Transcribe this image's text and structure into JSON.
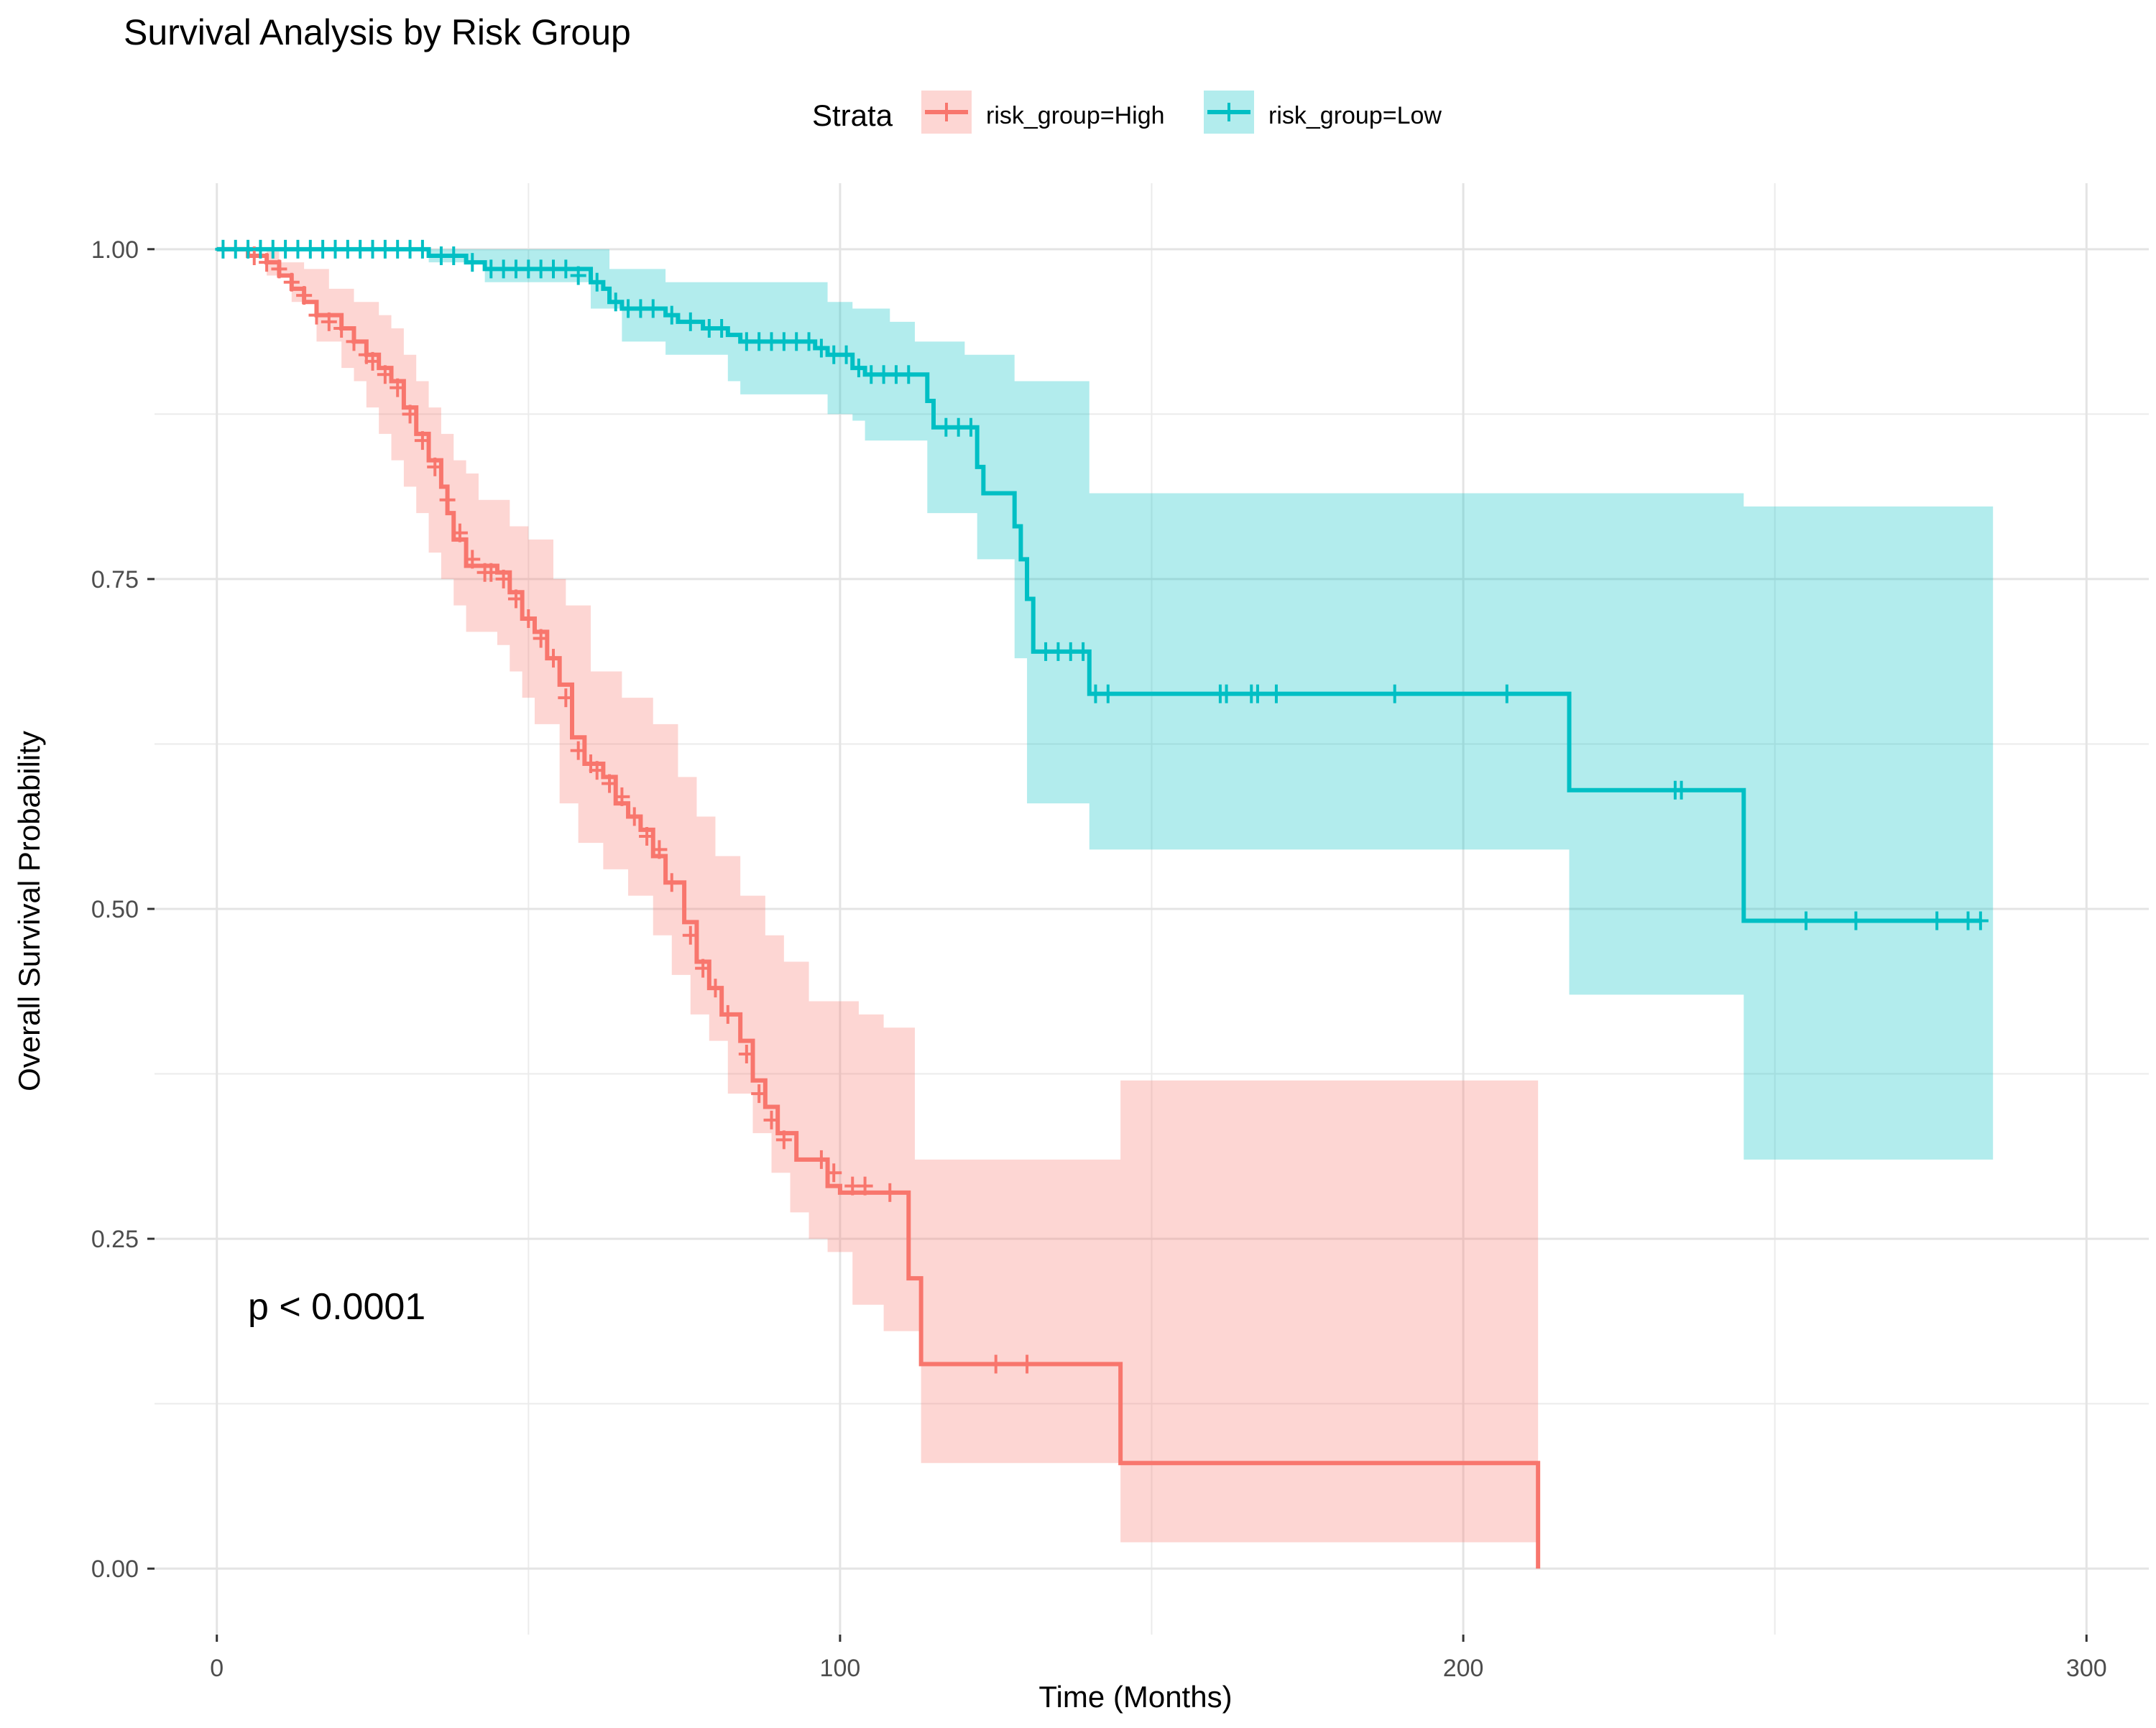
{
  "chart_data": {
    "type": "line",
    "title": "Survival Analysis by Risk Group",
    "xlabel": "Time (Months)",
    "ylabel": "Overall Survival Probability",
    "xlim": [
      -10,
      310
    ],
    "ylim": [
      -0.05,
      1.05
    ],
    "x_ticks": [
      0,
      100,
      200,
      300
    ],
    "y_ticks": [
      0.0,
      0.25,
      0.5,
      0.75,
      1.0
    ],
    "x_tick_labels": [
      "0",
      "100",
      "200",
      "300"
    ],
    "y_tick_labels": [
      "0.00",
      "0.25",
      "0.50",
      "0.75",
      "1.00"
    ],
    "grid": true,
    "legend_title": "Strata",
    "legend_position": "top",
    "annotation": "p < 0.0001",
    "series": [
      {
        "name": "risk_group=High",
        "color": "#F8766D",
        "fill": "#F8766D",
        "steps": [
          [
            0,
            1.0
          ],
          [
            5,
            0.995
          ],
          [
            8,
            0.99
          ],
          [
            10,
            0.98
          ],
          [
            12,
            0.97
          ],
          [
            14,
            0.96
          ],
          [
            16,
            0.95
          ],
          [
            20,
            0.94
          ],
          [
            22,
            0.93
          ],
          [
            24,
            0.92
          ],
          [
            26,
            0.91
          ],
          [
            28,
            0.9
          ],
          [
            30,
            0.88
          ],
          [
            32,
            0.86
          ],
          [
            34,
            0.84
          ],
          [
            36,
            0.82
          ],
          [
            37,
            0.8
          ],
          [
            38,
            0.78
          ],
          [
            40,
            0.76
          ],
          [
            45,
            0.755
          ],
          [
            47,
            0.74
          ],
          [
            49,
            0.72
          ],
          [
            51,
            0.71
          ],
          [
            53,
            0.69
          ],
          [
            55,
            0.67
          ],
          [
            57,
            0.63
          ],
          [
            59,
            0.61
          ],
          [
            62,
            0.6
          ],
          [
            64,
            0.58
          ],
          [
            66,
            0.57
          ],
          [
            68,
            0.56
          ],
          [
            70,
            0.54
          ],
          [
            72,
            0.52
          ],
          [
            75,
            0.49
          ],
          [
            77,
            0.46
          ],
          [
            79,
            0.44
          ],
          [
            81,
            0.42
          ],
          [
            84,
            0.4
          ],
          [
            86,
            0.37
          ],
          [
            88,
            0.35
          ],
          [
            90,
            0.33
          ],
          [
            93,
            0.31
          ],
          [
            98,
            0.29
          ],
          [
            100,
            0.285
          ],
          [
            111,
            0.22
          ],
          [
            113,
            0.155
          ],
          [
            145,
            0.08
          ],
          [
            212,
            0.0
          ]
        ],
        "upper": [
          [
            0,
            1.0
          ],
          [
            5,
            1.0
          ],
          [
            10,
            0.99
          ],
          [
            14,
            0.985
          ],
          [
            18,
            0.97
          ],
          [
            22,
            0.96
          ],
          [
            26,
            0.95
          ],
          [
            28,
            0.94
          ],
          [
            30,
            0.92
          ],
          [
            32,
            0.9
          ],
          [
            34,
            0.88
          ],
          [
            36,
            0.86
          ],
          [
            38,
            0.84
          ],
          [
            40,
            0.83
          ],
          [
            42,
            0.81
          ],
          [
            47,
            0.79
          ],
          [
            50,
            0.78
          ],
          [
            54,
            0.75
          ],
          [
            56,
            0.73
          ],
          [
            60,
            0.68
          ],
          [
            65,
            0.66
          ],
          [
            70,
            0.64
          ],
          [
            74,
            0.6
          ],
          [
            77,
            0.57
          ],
          [
            80,
            0.54
          ],
          [
            84,
            0.51
          ],
          [
            88,
            0.48
          ],
          [
            91,
            0.46
          ],
          [
            95,
            0.43
          ],
          [
            103,
            0.42
          ],
          [
            107,
            0.41
          ],
          [
            112,
            0.31
          ],
          [
            145,
            0.37
          ],
          [
            212,
            0.37
          ]
        ],
        "lower": [
          [
            0,
            1.0
          ],
          [
            8,
            0.98
          ],
          [
            12,
            0.96
          ],
          [
            16,
            0.93
          ],
          [
            20,
            0.91
          ],
          [
            22,
            0.9
          ],
          [
            24,
            0.88
          ],
          [
            26,
            0.86
          ],
          [
            28,
            0.84
          ],
          [
            30,
            0.82
          ],
          [
            32,
            0.8
          ],
          [
            34,
            0.77
          ],
          [
            36,
            0.75
          ],
          [
            38,
            0.73
          ],
          [
            40,
            0.71
          ],
          [
            45,
            0.7
          ],
          [
            47,
            0.68
          ],
          [
            49,
            0.66
          ],
          [
            51,
            0.64
          ],
          [
            55,
            0.58
          ],
          [
            58,
            0.55
          ],
          [
            62,
            0.53
          ],
          [
            66,
            0.51
          ],
          [
            70,
            0.48
          ],
          [
            73,
            0.45
          ],
          [
            76,
            0.42
          ],
          [
            79,
            0.4
          ],
          [
            82,
            0.36
          ],
          [
            86,
            0.33
          ],
          [
            89,
            0.3
          ],
          [
            92,
            0.27
          ],
          [
            95,
            0.25
          ],
          [
            98,
            0.24
          ],
          [
            102,
            0.2
          ],
          [
            107,
            0.18
          ],
          [
            113,
            0.08
          ],
          [
            145,
            0.02
          ],
          [
            212,
            0.02
          ]
        ],
        "censors": [
          [
            6,
            0.995
          ],
          [
            8,
            0.99
          ],
          [
            10,
            0.985
          ],
          [
            12,
            0.975
          ],
          [
            14,
            0.965
          ],
          [
            16,
            0.95
          ],
          [
            18,
            0.945
          ],
          [
            20,
            0.94
          ],
          [
            22,
            0.93
          ],
          [
            24,
            0.92
          ],
          [
            25,
            0.915
          ],
          [
            27,
            0.905
          ],
          [
            29,
            0.895
          ],
          [
            31,
            0.875
          ],
          [
            33,
            0.855
          ],
          [
            35,
            0.835
          ],
          [
            37,
            0.81
          ],
          [
            39,
            0.785
          ],
          [
            41,
            0.765
          ],
          [
            43,
            0.755
          ],
          [
            44,
            0.755
          ],
          [
            46,
            0.75
          ],
          [
            48,
            0.735
          ],
          [
            50,
            0.72
          ],
          [
            52,
            0.705
          ],
          [
            54,
            0.69
          ],
          [
            56,
            0.66
          ],
          [
            58,
            0.62
          ],
          [
            60,
            0.61
          ],
          [
            61,
            0.605
          ],
          [
            63,
            0.595
          ],
          [
            65,
            0.585
          ],
          [
            67,
            0.57
          ],
          [
            69,
            0.555
          ],
          [
            71,
            0.545
          ],
          [
            73,
            0.52
          ],
          [
            76,
            0.48
          ],
          [
            78,
            0.455
          ],
          [
            80,
            0.44
          ],
          [
            82,
            0.42
          ],
          [
            85,
            0.39
          ],
          [
            87,
            0.36
          ],
          [
            89,
            0.34
          ],
          [
            91,
            0.325
          ],
          [
            97,
            0.31
          ],
          [
            99,
            0.3
          ],
          [
            102,
            0.29
          ],
          [
            104,
            0.29
          ],
          [
            108,
            0.285
          ],
          [
            125,
            0.155
          ],
          [
            130,
            0.155
          ]
        ]
      },
      {
        "name": "risk_group=Low",
        "color": "#00BFC4",
        "fill": "#00BFC4",
        "steps": [
          [
            0,
            1.0
          ],
          [
            34,
            0.995
          ],
          [
            40,
            0.99
          ],
          [
            43,
            0.985
          ],
          [
            60,
            0.975
          ],
          [
            62,
            0.97
          ],
          [
            63,
            0.96
          ],
          [
            65,
            0.955
          ],
          [
            72,
            0.95
          ],
          [
            74,
            0.945
          ],
          [
            78,
            0.94
          ],
          [
            82,
            0.935
          ],
          [
            84,
            0.93
          ],
          [
            96,
            0.925
          ],
          [
            98,
            0.92
          ],
          [
            102,
            0.91
          ],
          [
            104,
            0.905
          ],
          [
            114,
            0.885
          ],
          [
            115,
            0.865
          ],
          [
            122,
            0.835
          ],
          [
            123,
            0.815
          ],
          [
            128,
            0.79
          ],
          [
            129,
            0.765
          ],
          [
            130,
            0.735
          ],
          [
            131,
            0.695
          ],
          [
            140,
            0.663
          ],
          [
            217,
            0.59
          ],
          [
            245,
            0.491
          ],
          [
            283,
            0.491
          ]
        ],
        "upper": [
          [
            0,
            1.0
          ],
          [
            40,
            1.0
          ],
          [
            63,
            0.985
          ],
          [
            72,
            0.975
          ],
          [
            98,
            0.96
          ],
          [
            102,
            0.955
          ],
          [
            108,
            0.945
          ],
          [
            112,
            0.93
          ],
          [
            120,
            0.92
          ],
          [
            128,
            0.9
          ],
          [
            135,
            0.9
          ],
          [
            140,
            0.815
          ],
          [
            215,
            0.815
          ],
          [
            245,
            0.805
          ],
          [
            285,
            0.79
          ],
          [
            285,
            0.79
          ]
        ],
        "lower": [
          [
            0,
            1.0
          ],
          [
            34,
            0.99
          ],
          [
            43,
            0.975
          ],
          [
            60,
            0.955
          ],
          [
            65,
            0.93
          ],
          [
            72,
            0.92
          ],
          [
            82,
            0.9
          ],
          [
            84,
            0.89
          ],
          [
            98,
            0.875
          ],
          [
            102,
            0.87
          ],
          [
            104,
            0.855
          ],
          [
            114,
            0.8
          ],
          [
            122,
            0.765
          ],
          [
            128,
            0.69
          ],
          [
            130,
            0.58
          ],
          [
            140,
            0.545
          ],
          [
            217,
            0.435
          ],
          [
            245,
            0.31
          ],
          [
            285,
            0.31
          ]
        ],
        "censors": [
          [
            1,
            1.0
          ],
          [
            3,
            1.0
          ],
          [
            5,
            1.0
          ],
          [
            7,
            1.0
          ],
          [
            9,
            1.0
          ],
          [
            11,
            1.0
          ],
          [
            13,
            1.0
          ],
          [
            15,
            1.0
          ],
          [
            17,
            1.0
          ],
          [
            19,
            1.0
          ],
          [
            21,
            1.0
          ],
          [
            23,
            1.0
          ],
          [
            25,
            1.0
          ],
          [
            27,
            1.0
          ],
          [
            29,
            1.0
          ],
          [
            31,
            1.0
          ],
          [
            33,
            1.0
          ],
          [
            36,
            0.995
          ],
          [
            38,
            0.995
          ],
          [
            41,
            0.99
          ],
          [
            44,
            0.985
          ],
          [
            46,
            0.985
          ],
          [
            48,
            0.985
          ],
          [
            50,
            0.985
          ],
          [
            52,
            0.985
          ],
          [
            54,
            0.985
          ],
          [
            56,
            0.985
          ],
          [
            58,
            0.98
          ],
          [
            61,
            0.975
          ],
          [
            64,
            0.96
          ],
          [
            66,
            0.955
          ],
          [
            68,
            0.955
          ],
          [
            70,
            0.955
          ],
          [
            73,
            0.95
          ],
          [
            76,
            0.945
          ],
          [
            79,
            0.94
          ],
          [
            81,
            0.94
          ],
          [
            85,
            0.93
          ],
          [
            87,
            0.93
          ],
          [
            89,
            0.93
          ],
          [
            91,
            0.93
          ],
          [
            93,
            0.93
          ],
          [
            95,
            0.93
          ],
          [
            97,
            0.925
          ],
          [
            99,
            0.92
          ],
          [
            101,
            0.92
          ],
          [
            103,
            0.91
          ],
          [
            105,
            0.905
          ],
          [
            107,
            0.905
          ],
          [
            109,
            0.905
          ],
          [
            111,
            0.905
          ],
          [
            117,
            0.865
          ],
          [
            119,
            0.865
          ],
          [
            121,
            0.865
          ],
          [
            133,
            0.695
          ],
          [
            135,
            0.695
          ],
          [
            137,
            0.695
          ],
          [
            139,
            0.695
          ],
          [
            141,
            0.663
          ],
          [
            143,
            0.663
          ],
          [
            161,
            0.663
          ],
          [
            162,
            0.663
          ],
          [
            166,
            0.663
          ],
          [
            167,
            0.663
          ],
          [
            170,
            0.663
          ],
          [
            189,
            0.663
          ],
          [
            207,
            0.663
          ],
          [
            234,
            0.59
          ],
          [
            235,
            0.59
          ],
          [
            255,
            0.491
          ],
          [
            263,
            0.491
          ],
          [
            276,
            0.491
          ],
          [
            281,
            0.491
          ],
          [
            283,
            0.491
          ]
        ]
      }
    ]
  }
}
